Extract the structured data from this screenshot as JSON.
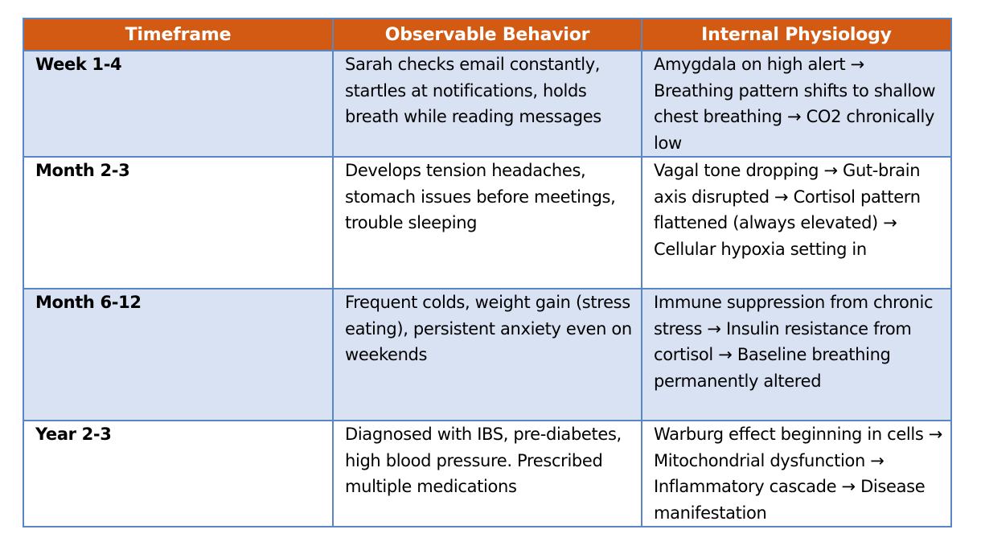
{
  "headers": {
    "timeframe": "Timeframe",
    "behavior": "Observable Behavior",
    "physiology": "Internal Physiology"
  },
  "rows": [
    {
      "timeframe": "Week 1-4",
      "behavior": "Sarah checks email constantly, startles at notifications, holds breath while reading messages",
      "physiology": "Amygdala on high alert → Breathing pattern shifts to shallow chest breathing → CO2 chronically low"
    },
    {
      "timeframe": "Month 2-3",
      "behavior": "Develops tension headaches, stomach issues before meetings, trouble sleeping",
      "physiology": "Vagal tone dropping → Gut-brain axis disrupted → Cortisol pattern flattened (always elevated) → Cellular hypoxia setting in"
    },
    {
      "timeframe": "Month 6-12",
      "behavior": "Frequent colds, weight gain (stress eating), persistent anxiety even on weekends",
      "physiology": "Immune suppression from chronic stress → Insulin resistance from cortisol → Baseline breathing permanently altered"
    },
    {
      "timeframe": "Year 2-3",
      "behavior": "Diagnosed with IBS, pre-diabetes, high blood pressure. Prescribed multiple medications",
      "physiology": "Warburg effect beginning in cells → Mitochondrial dysfunction → Inflammatory cascade → Disease manifestation"
    }
  ],
  "colors": {
    "header_background": "#d35a12",
    "header_text": "#ffffff",
    "shaded_row": "#d9e2f3",
    "border": "#5b86c4"
  }
}
